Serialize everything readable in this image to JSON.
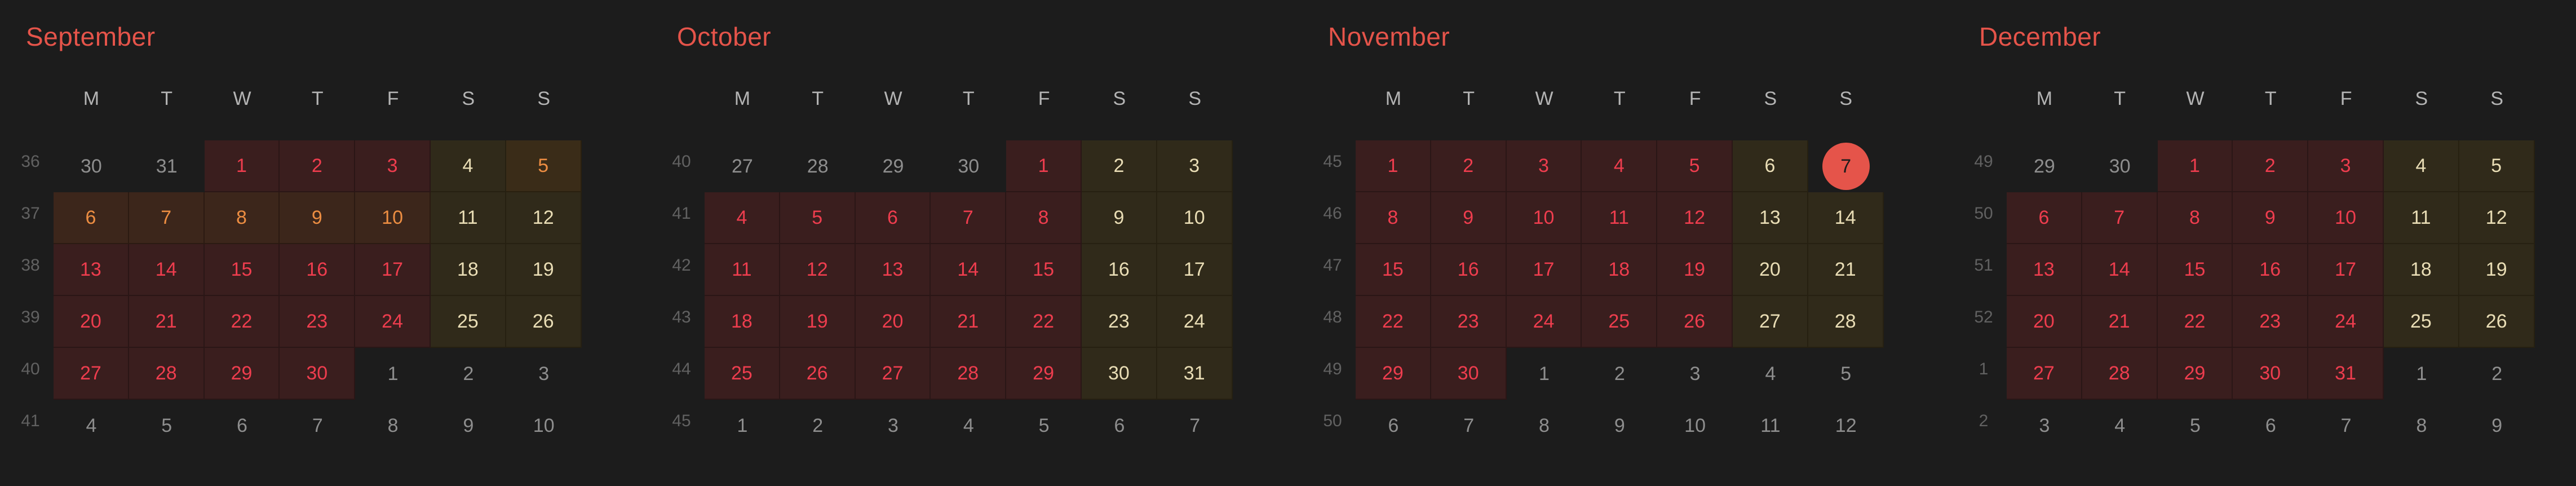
{
  "weekday_labels": [
    "M",
    "T",
    "W",
    "T",
    "F",
    "S",
    "S"
  ],
  "months": [
    {
      "name": "September",
      "weeks": [
        36,
        37,
        38,
        39,
        40,
        41
      ],
      "days": [
        [
          30,
          31,
          1,
          2,
          3,
          4,
          5
        ],
        [
          6,
          7,
          8,
          9,
          10,
          11,
          12
        ],
        [
          13,
          14,
          15,
          16,
          17,
          18,
          19
        ],
        [
          20,
          21,
          22,
          23,
          24,
          25,
          26
        ],
        [
          27,
          28,
          29,
          30,
          1,
          2,
          3
        ],
        [
          4,
          5,
          6,
          7,
          8,
          9,
          10
        ]
      ],
      "first_in_month": [
        0,
        2
      ],
      "last_in_month": [
        4,
        3
      ],
      "highlighted_range": [
        [
          0,
          6
        ],
        [
          1,
          4
        ]
      ],
      "today": null
    },
    {
      "name": "October",
      "weeks": [
        40,
        41,
        42,
        43,
        44,
        45
      ],
      "days": [
        [
          27,
          28,
          29,
          30,
          1,
          2,
          3
        ],
        [
          4,
          5,
          6,
          7,
          8,
          9,
          10
        ],
        [
          11,
          12,
          13,
          14,
          15,
          16,
          17
        ],
        [
          18,
          19,
          20,
          21,
          22,
          23,
          24
        ],
        [
          25,
          26,
          27,
          28,
          29,
          30,
          31
        ],
        [
          1,
          2,
          3,
          4,
          5,
          6,
          7
        ]
      ],
      "first_in_month": [
        0,
        4
      ],
      "last_in_month": [
        4,
        6
      ],
      "highlighted_range": null,
      "today": null
    },
    {
      "name": "November",
      "weeks": [
        45,
        46,
        47,
        48,
        49,
        50
      ],
      "days": [
        [
          1,
          2,
          3,
          4,
          5,
          6,
          7
        ],
        [
          8,
          9,
          10,
          11,
          12,
          13,
          14
        ],
        [
          15,
          16,
          17,
          18,
          19,
          20,
          21
        ],
        [
          22,
          23,
          24,
          25,
          26,
          27,
          28
        ],
        [
          29,
          30,
          1,
          2,
          3,
          4,
          5
        ],
        [
          6,
          7,
          8,
          9,
          10,
          11,
          12
        ]
      ],
      "first_in_month": [
        0,
        0
      ],
      "last_in_month": [
        4,
        1
      ],
      "highlighted_range": null,
      "today": [
        0,
        6
      ]
    },
    {
      "name": "December",
      "weeks": [
        49,
        50,
        51,
        52,
        1,
        2
      ],
      "days": [
        [
          29,
          30,
          1,
          2,
          3,
          4,
          5
        ],
        [
          6,
          7,
          8,
          9,
          10,
          11,
          12
        ],
        [
          13,
          14,
          15,
          16,
          17,
          18,
          19
        ],
        [
          20,
          21,
          22,
          23,
          24,
          25,
          26
        ],
        [
          27,
          28,
          29,
          30,
          31,
          1,
          2
        ],
        [
          3,
          4,
          5,
          6,
          7,
          8,
          9
        ]
      ],
      "first_in_month": [
        0,
        2
      ],
      "last_in_month": [
        4,
        4
      ],
      "highlighted_range": null,
      "today": null
    }
  ]
}
